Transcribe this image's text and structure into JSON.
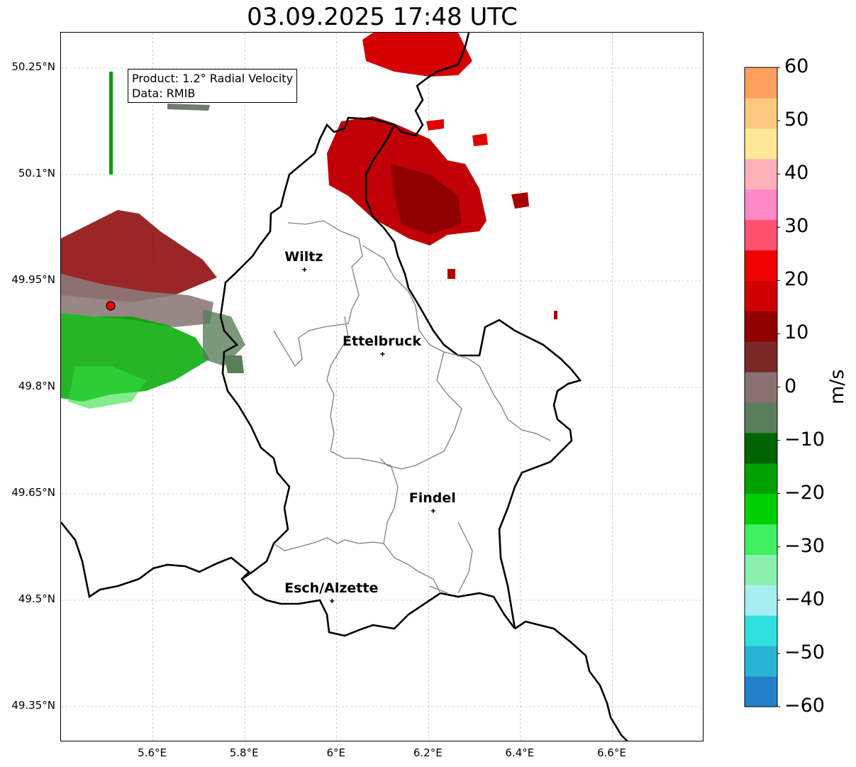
{
  "title": "03.09.2025 17:48 UTC",
  "info": {
    "product": "Product: 1.2° Radial Velocity",
    "data": "Data: RMIB"
  },
  "axes": {
    "lon_range": [
      5.4,
      6.8
    ],
    "lat_range": [
      49.3,
      50.3
    ],
    "lat_ticks": [
      "50.25°N",
      "50.1°N",
      "49.95°N",
      "49.8°N",
      "49.65°N",
      "49.5°N",
      "49.35°N"
    ],
    "lon_ticks": [
      "5.6°E",
      "5.8°E",
      "6°E",
      "6.2°E",
      "6.4°E",
      "6.6°E"
    ],
    "grid": true
  },
  "colorbar": {
    "label": "m/s",
    "range": [
      -60,
      60
    ],
    "ticks": [
      "60",
      "50",
      "40",
      "30",
      "20",
      "10",
      "0",
      "−10",
      "−20",
      "−30",
      "−40",
      "−50",
      "−60"
    ],
    "colors": [
      "#2380c8",
      "#28b4d2",
      "#2fe0e0",
      "#a8eef0",
      "#8af0b0",
      "#40f060",
      "#00d000",
      "#00a000",
      "#006400",
      "#5a7e5a",
      "#8a7070",
      "#7a2828",
      "#900000",
      "#d00000",
      "#f00000",
      "#ff5070",
      "#ff88c8",
      "#ffb0b8",
      "#ffe898",
      "#ffc880",
      "#ffa060"
    ]
  },
  "radar": {
    "name": "radar-site",
    "color": "#ff0000"
  },
  "cities": [
    {
      "name": "Wiltz",
      "lon": 5.93,
      "lat": 49.966
    },
    {
      "name": "Ettelbruck",
      "lon": 6.1,
      "lat": 49.847
    },
    {
      "name": "Findel",
      "lon": 6.21,
      "lat": 49.626
    },
    {
      "name": "Esch/Alzette",
      "lon": 5.99,
      "lat": 49.499
    }
  ]
}
